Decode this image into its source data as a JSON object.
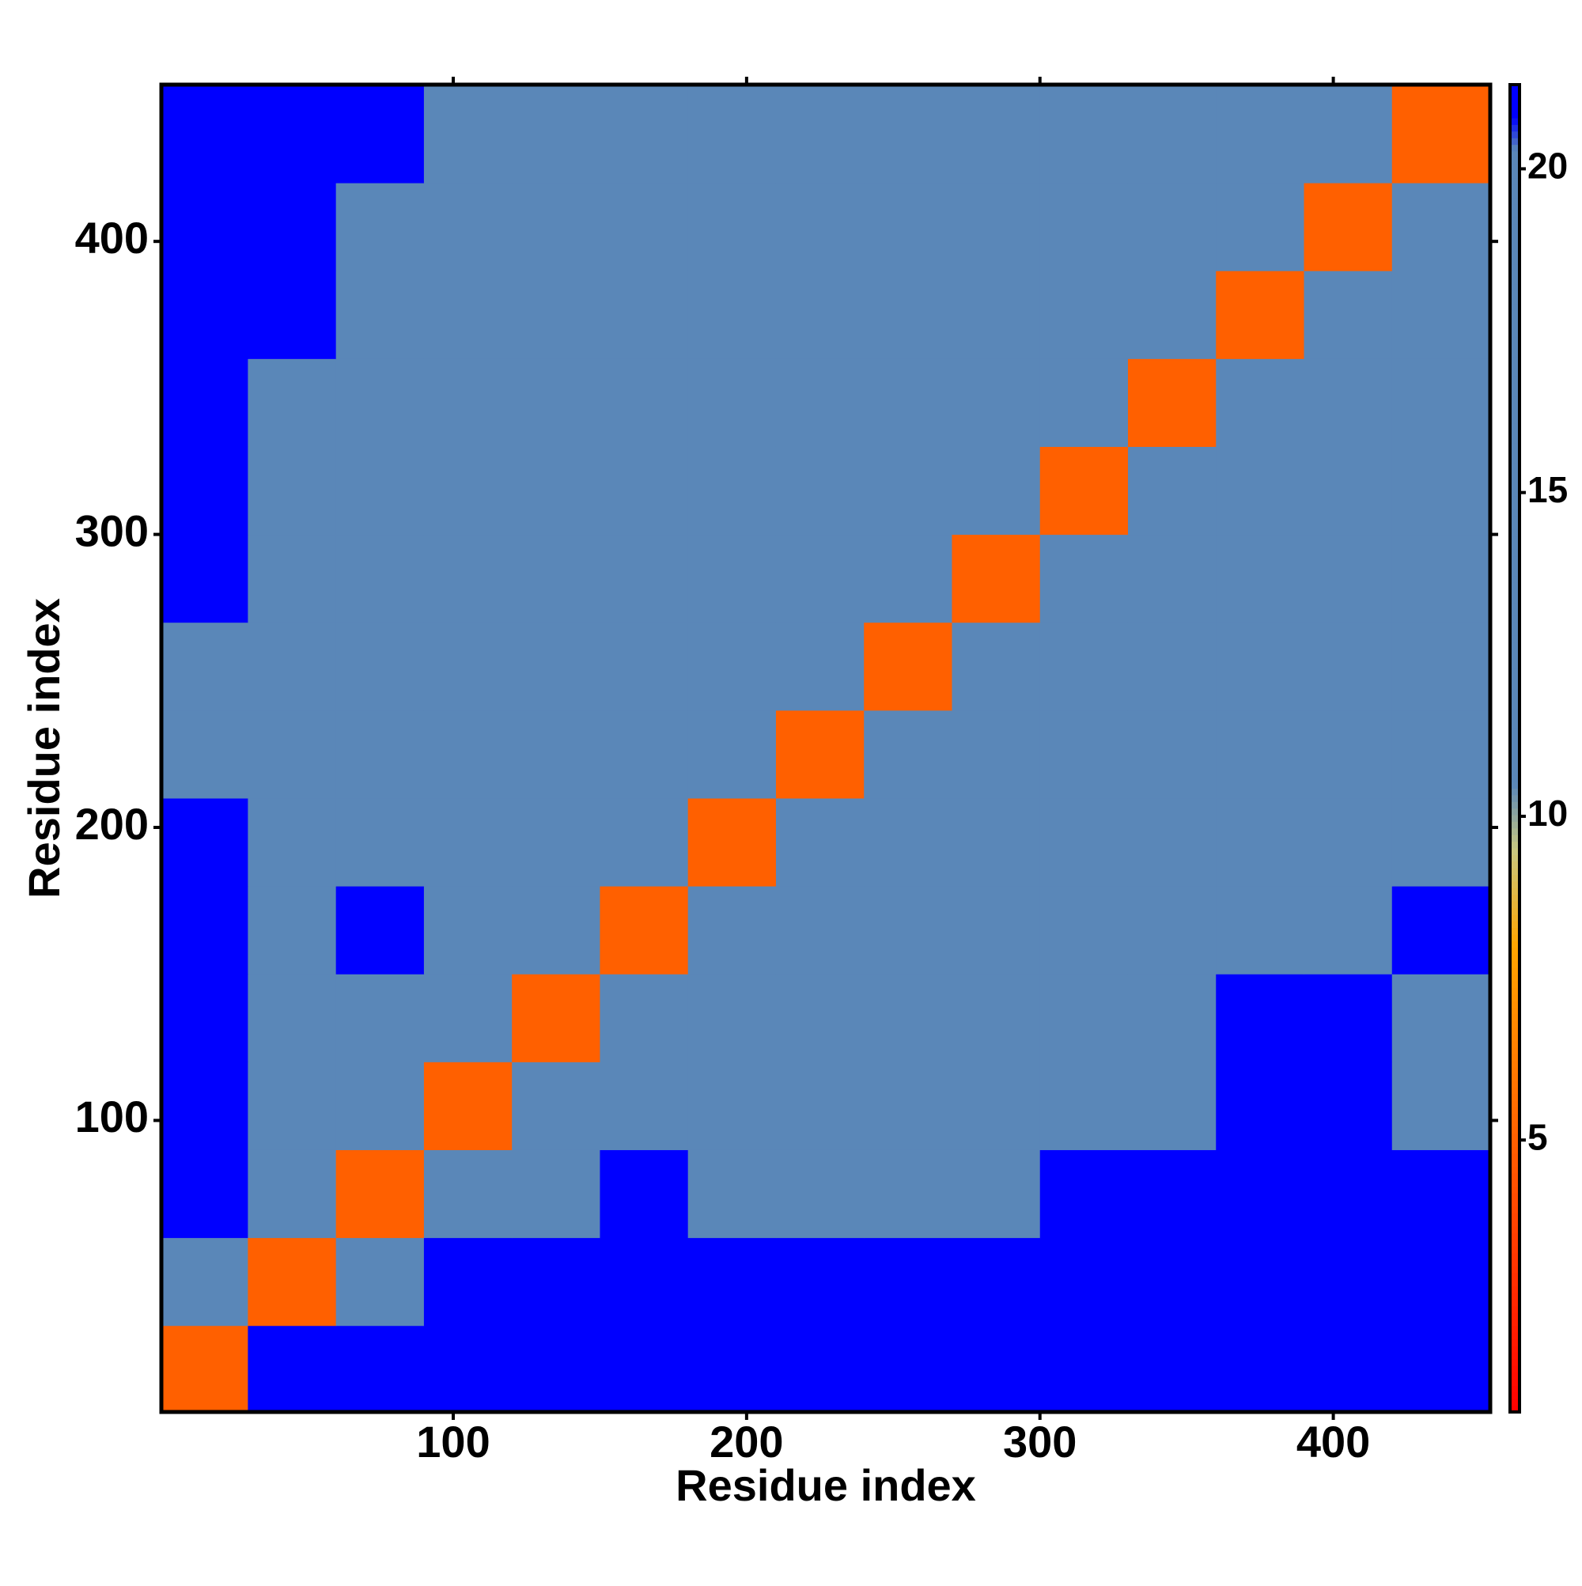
{
  "chart_data": {
    "type": "heatmap",
    "x_label": "Residue index",
    "y_label": "Residue index",
    "x": [
      15,
      45,
      75,
      105,
      135,
      165,
      195,
      225,
      255,
      285,
      315,
      345,
      375,
      405,
      435
    ],
    "y": [
      15,
      45,
      75,
      105,
      135,
      165,
      195,
      225,
      255,
      285,
      315,
      345,
      375,
      405,
      435
    ],
    "values": [
      [
        5,
        21,
        21,
        21,
        21,
        21,
        21,
        21,
        21,
        21,
        21,
        21,
        21,
        21,
        21
      ],
      [
        17,
        5,
        18,
        21,
        21,
        21,
        21,
        21,
        21,
        21,
        21,
        21,
        21,
        21,
        21
      ],
      [
        21,
        15,
        5,
        15,
        18,
        21,
        19,
        20,
        20,
        20,
        21,
        21,
        21,
        21,
        21
      ],
      [
        21,
        17,
        16,
        5,
        16,
        17,
        18,
        18,
        19,
        19,
        20,
        19,
        21,
        21,
        19
      ],
      [
        21,
        19,
        17,
        15,
        5,
        13,
        17,
        19,
        19,
        19,
        19,
        19,
        21,
        21,
        20
      ],
      [
        21,
        18,
        21,
        17,
        13,
        5,
        16,
        17,
        19,
        19,
        19,
        19,
        20,
        20,
        21
      ],
      [
        21,
        20,
        19,
        18,
        17,
        12,
        5,
        16,
        17,
        17,
        17,
        18,
        17,
        16,
        12
      ],
      [
        20,
        19,
        18,
        16,
        17,
        15,
        11,
        5,
        14,
        17,
        16,
        16,
        16,
        15,
        13
      ],
      [
        20,
        19,
        18,
        17,
        18,
        17,
        13,
        11,
        5,
        12,
        16,
        16,
        16,
        15,
        16
      ],
      [
        21,
        19,
        18,
        17,
        18,
        17,
        15,
        12,
        11,
        5,
        15,
        16,
        16,
        16,
        17
      ],
      [
        21,
        20,
        18,
        17,
        18,
        17,
        16,
        16,
        13,
        12,
        5,
        13,
        16,
        17,
        18
      ],
      [
        21,
        20,
        19,
        18,
        18,
        17,
        16,
        15,
        15,
        16,
        12,
        5,
        12,
        16,
        17
      ],
      [
        21,
        21,
        19,
        18,
        19,
        18,
        16,
        16,
        16,
        16,
        15,
        11,
        5,
        12,
        16
      ],
      [
        21,
        21,
        20,
        19,
        19,
        18,
        15,
        16,
        17,
        16,
        16,
        16,
        12,
        5,
        12
      ],
      [
        21,
        21,
        21,
        19,
        17,
        19,
        14,
        14,
        17,
        16,
        17,
        16,
        14,
        12,
        5
      ]
    ],
    "xlim": [
      0.5,
      453.5
    ],
    "ylim": [
      0.5,
      453.5
    ],
    "xticks": [
      100,
      200,
      300,
      400
    ],
    "yticks": [
      100,
      200,
      300,
      400
    ],
    "colorbar": {
      "lim": [
        0.8,
        21.3
      ],
      "ticks": [
        5,
        10,
        15,
        20
      ]
    },
    "colorscale": [
      [
        0.8,
        "#ff0000"
      ],
      [
        8,
        "#ffa500"
      ],
      [
        9.5,
        "#c8c882"
      ],
      [
        10.5,
        "#5a87b8"
      ],
      [
        20.3,
        "#5a87b8"
      ],
      [
        20.8,
        "#0000ff"
      ]
    ]
  }
}
